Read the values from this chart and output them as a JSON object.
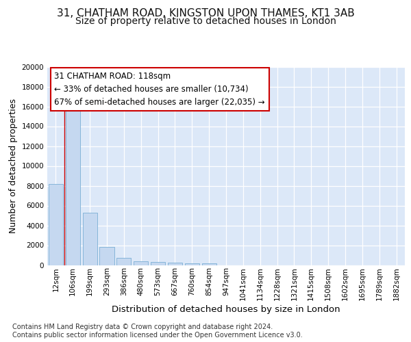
{
  "title_line1": "31, CHATHAM ROAD, KINGSTON UPON THAMES, KT1 3AB",
  "title_line2": "Size of property relative to detached houses in London",
  "xlabel": "Distribution of detached houses by size in London",
  "ylabel": "Number of detached properties",
  "bar_color": "#c5d8f0",
  "bar_edge_color": "#7aaed4",
  "annotation_text": "31 CHATHAM ROAD: 118sqm\n← 33% of detached houses are smaller (10,734)\n67% of semi-detached houses are larger (22,035) →",
  "annotation_box_facecolor": "#ffffff",
  "annotation_box_edgecolor": "#cc0000",
  "vline_color": "#cc0000",
  "footer_text": "Contains HM Land Registry data © Crown copyright and database right 2024.\nContains public sector information licensed under the Open Government Licence v3.0.",
  "categories": [
    "12sqm",
    "106sqm",
    "199sqm",
    "293sqm",
    "386sqm",
    "480sqm",
    "573sqm",
    "667sqm",
    "760sqm",
    "854sqm",
    "947sqm",
    "1041sqm",
    "1134sqm",
    "1228sqm",
    "1321sqm",
    "1415sqm",
    "1508sqm",
    "1602sqm",
    "1695sqm",
    "1789sqm",
    "1882sqm"
  ],
  "values": [
    8150,
    16650,
    5300,
    1850,
    750,
    370,
    290,
    230,
    200,
    175,
    0,
    0,
    0,
    0,
    0,
    0,
    0,
    0,
    0,
    0,
    0
  ],
  "ylim": [
    0,
    20000
  ],
  "yticks": [
    0,
    2000,
    4000,
    6000,
    8000,
    10000,
    12000,
    14000,
    16000,
    18000,
    20000
  ],
  "plot_bg_color": "#dce8f8",
  "fig_bg_color": "#ffffff",
  "grid_color": "#ffffff",
  "title_fontsize": 11,
  "subtitle_fontsize": 10,
  "tick_fontsize": 7.5,
  "ylabel_fontsize": 9,
  "xlabel_fontsize": 9.5,
  "annotation_fontsize": 8.5,
  "footer_fontsize": 7
}
